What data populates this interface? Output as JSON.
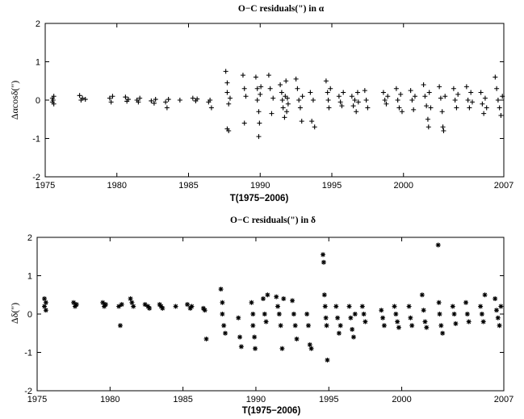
{
  "chart_data": [
    {
      "type": "scatter",
      "title": "O−C residuals(\") in α",
      "xlabel": "T(1975−2006)",
      "ylabel": "Δαcosδ(\")",
      "xlim": [
        1975,
        2007
      ],
      "ylim": [
        -2,
        2
      ],
      "xticks": [
        1975,
        1980,
        1985,
        1990,
        1995,
        2000,
        2007
      ],
      "yticks": [
        2,
        1,
        0,
        -1,
        -2
      ],
      "marker": "plus",
      "grid": false,
      "series": [
        {
          "points": [
            [
              1975.5,
              0.05
            ],
            [
              1975.5,
              -0.05
            ],
            [
              1975.6,
              0.1
            ],
            [
              1975.6,
              -0.1
            ],
            [
              1975.55,
              0.0
            ],
            [
              1977.4,
              0.12
            ],
            [
              1977.5,
              0.0
            ],
            [
              1977.6,
              0.05
            ],
            [
              1977.8,
              0.02
            ],
            [
              1979.5,
              0.05
            ],
            [
              1979.6,
              -0.05
            ],
            [
              1979.7,
              0.1
            ],
            [
              1980.6,
              0.08
            ],
            [
              1980.7,
              -0.03
            ],
            [
              1980.8,
              0.02
            ],
            [
              1981.4,
              0.0
            ],
            [
              1981.5,
              -0.05
            ],
            [
              1981.6,
              0.05
            ],
            [
              1982.4,
              -0.02
            ],
            [
              1982.6,
              -0.08
            ],
            [
              1982.7,
              0.02
            ],
            [
              1983.4,
              -0.05
            ],
            [
              1983.5,
              -0.2
            ],
            [
              1983.6,
              0.02
            ],
            [
              1984.4,
              0.0
            ],
            [
              1985.3,
              0.05
            ],
            [
              1985.5,
              -0.02
            ],
            [
              1985.6,
              0.03
            ],
            [
              1986.4,
              -0.05
            ],
            [
              1986.5,
              0.0
            ],
            [
              1986.6,
              -0.2
            ],
            [
              1987.6,
              0.75
            ],
            [
              1987.7,
              0.45
            ],
            [
              1987.7,
              0.2
            ],
            [
              1987.8,
              -0.1
            ],
            [
              1987.7,
              -0.75
            ],
            [
              1987.8,
              -0.8
            ],
            [
              1987.9,
              0.05
            ],
            [
              1988.8,
              0.65
            ],
            [
              1988.9,
              0.3
            ],
            [
              1988.9,
              -0.6
            ],
            [
              1989.0,
              0.1
            ],
            [
              1989.7,
              0.6
            ],
            [
              1989.8,
              0.3
            ],
            [
              1989.8,
              0.0
            ],
            [
              1989.9,
              -0.3
            ],
            [
              1989.9,
              -0.95
            ],
            [
              1989.95,
              -0.6
            ],
            [
              1990.0,
              0.15
            ],
            [
              1990.05,
              0.35
            ],
            [
              1990.6,
              0.65
            ],
            [
              1990.7,
              0.3
            ],
            [
              1990.8,
              -0.35
            ],
            [
              1990.9,
              0.05
            ],
            [
              1991.4,
              0.4
            ],
            [
              1991.5,
              0.2
            ],
            [
              1991.55,
              0.0
            ],
            [
              1991.6,
              -0.2
            ],
            [
              1991.7,
              -0.45
            ],
            [
              1991.75,
              0.1
            ],
            [
              1991.8,
              0.5
            ],
            [
              1991.85,
              -0.3
            ],
            [
              1991.9,
              0.05
            ],
            [
              1991.95,
              -0.1
            ],
            [
              1992.5,
              0.55
            ],
            [
              1992.6,
              0.3
            ],
            [
              1992.7,
              0.0
            ],
            [
              1992.8,
              -0.2
            ],
            [
              1992.9,
              -0.55
            ],
            [
              1992.95,
              0.1
            ],
            [
              1993.5,
              0.2
            ],
            [
              1993.6,
              -0.55
            ],
            [
              1993.7,
              0.0
            ],
            [
              1993.8,
              -0.7
            ],
            [
              1994.6,
              0.5
            ],
            [
              1994.7,
              0.2
            ],
            [
              1994.75,
              0.0
            ],
            [
              1994.8,
              -0.2
            ],
            [
              1994.9,
              0.3
            ],
            [
              1995.5,
              0.1
            ],
            [
              1995.6,
              -0.05
            ],
            [
              1995.7,
              -0.15
            ],
            [
              1995.8,
              0.2
            ],
            [
              1996.4,
              0.1
            ],
            [
              1996.5,
              -0.15
            ],
            [
              1996.6,
              0.0
            ],
            [
              1996.7,
              -0.3
            ],
            [
              1996.8,
              0.2
            ],
            [
              1996.85,
              -0.05
            ],
            [
              1997.3,
              0.25
            ],
            [
              1997.4,
              0.0
            ],
            [
              1997.5,
              -0.2
            ],
            [
              1998.6,
              0.2
            ],
            [
              1998.7,
              0.0
            ],
            [
              1998.8,
              -0.1
            ],
            [
              1998.9,
              0.1
            ],
            [
              1999.5,
              0.3
            ],
            [
              1999.6,
              0.0
            ],
            [
              1999.7,
              -0.2
            ],
            [
              1999.8,
              0.15
            ],
            [
              1999.9,
              -0.3
            ],
            [
              2000.5,
              0.25
            ],
            [
              2000.6,
              0.0
            ],
            [
              2000.7,
              -0.25
            ],
            [
              2000.8,
              0.1
            ],
            [
              2001.4,
              0.4
            ],
            [
              2001.5,
              0.1
            ],
            [
              2001.6,
              -0.15
            ],
            [
              2001.7,
              -0.5
            ],
            [
              2001.75,
              -0.7
            ],
            [
              2001.8,
              0.2
            ],
            [
              2001.9,
              -0.2
            ],
            [
              2002.5,
              0.35
            ],
            [
              2002.6,
              0.05
            ],
            [
              2002.7,
              -0.3
            ],
            [
              2002.75,
              -0.7
            ],
            [
              2002.8,
              -0.8
            ],
            [
              2002.9,
              0.1
            ],
            [
              2003.5,
              0.3
            ],
            [
              2003.6,
              0.0
            ],
            [
              2003.7,
              -0.2
            ],
            [
              2003.8,
              0.15
            ],
            [
              2004.4,
              0.35
            ],
            [
              2004.5,
              0.0
            ],
            [
              2004.6,
              -0.2
            ],
            [
              2004.7,
              0.2
            ],
            [
              2004.8,
              -0.05
            ],
            [
              2005.4,
              0.2
            ],
            [
              2005.5,
              -0.1
            ],
            [
              2005.6,
              -0.35
            ],
            [
              2005.7,
              0.05
            ],
            [
              2005.8,
              -0.2
            ],
            [
              2006.4,
              0.6
            ],
            [
              2006.5,
              0.3
            ],
            [
              2006.6,
              0.0
            ],
            [
              2006.7,
              -0.2
            ],
            [
              2006.8,
              -0.4
            ],
            [
              2006.9,
              0.1
            ]
          ]
        }
      ]
    },
    {
      "type": "scatter",
      "title": "O−C residuals(\") in δ",
      "xlabel": "T(1975−2006)",
      "ylabel": "Δδ(\")",
      "xlim": [
        1975,
        2007
      ],
      "ylim": [
        -2,
        2
      ],
      "xticks": [
        1975,
        1980,
        1985,
        1990,
        1995,
        2000,
        2007
      ],
      "yticks": [
        2,
        1,
        0,
        -1,
        -2
      ],
      "marker": "asterisk",
      "grid": false,
      "series": [
        {
          "points": [
            [
              1975.5,
              0.4
            ],
            [
              1975.5,
              0.2
            ],
            [
              1975.6,
              0.1
            ],
            [
              1975.6,
              0.3
            ],
            [
              1977.5,
              0.3
            ],
            [
              1977.6,
              0.2
            ],
            [
              1977.7,
              0.25
            ],
            [
              1979.5,
              0.3
            ],
            [
              1979.6,
              0.2
            ],
            [
              1979.7,
              0.25
            ],
            [
              1980.6,
              0.2
            ],
            [
              1980.7,
              -0.3
            ],
            [
              1980.8,
              0.25
            ],
            [
              1981.4,
              0.4
            ],
            [
              1981.5,
              0.3
            ],
            [
              1981.6,
              0.2
            ],
            [
              1982.4,
              0.25
            ],
            [
              1982.6,
              0.2
            ],
            [
              1982.7,
              0.15
            ],
            [
              1983.4,
              0.25
            ],
            [
              1983.5,
              0.2
            ],
            [
              1983.6,
              0.15
            ],
            [
              1984.5,
              0.2
            ],
            [
              1985.3,
              0.25
            ],
            [
              1985.5,
              0.15
            ],
            [
              1985.6,
              0.2
            ],
            [
              1986.4,
              0.15
            ],
            [
              1986.5,
              0.1
            ],
            [
              1986.6,
              -0.65
            ],
            [
              1987.6,
              0.65
            ],
            [
              1987.7,
              0.3
            ],
            [
              1987.7,
              0.0
            ],
            [
              1987.8,
              -0.3
            ],
            [
              1987.9,
              -0.5
            ],
            [
              1988.8,
              -0.1
            ],
            [
              1988.9,
              -0.6
            ],
            [
              1989.0,
              -0.85
            ],
            [
              1989.7,
              0.3
            ],
            [
              1989.8,
              0.0
            ],
            [
              1989.8,
              -0.3
            ],
            [
              1989.9,
              -0.6
            ],
            [
              1989.95,
              -0.9
            ],
            [
              1990.5,
              0.4
            ],
            [
              1990.6,
              0.0
            ],
            [
              1990.7,
              -0.2
            ],
            [
              1990.8,
              0.5
            ],
            [
              1991.4,
              0.45
            ],
            [
              1991.5,
              0.2
            ],
            [
              1991.6,
              0.0
            ],
            [
              1991.7,
              -0.3
            ],
            [
              1991.8,
              -0.9
            ],
            [
              1991.9,
              0.4
            ],
            [
              1992.5,
              0.35
            ],
            [
              1992.6,
              0.0
            ],
            [
              1992.7,
              -0.3
            ],
            [
              1992.8,
              -0.65
            ],
            [
              1993.5,
              0.0
            ],
            [
              1993.6,
              -0.3
            ],
            [
              1993.7,
              -0.8
            ],
            [
              1993.8,
              -0.9
            ],
            [
              1994.6,
              1.55
            ],
            [
              1994.65,
              1.35
            ],
            [
              1994.7,
              0.5
            ],
            [
              1994.75,
              0.2
            ],
            [
              1994.8,
              -0.1
            ],
            [
              1994.85,
              -0.3
            ],
            [
              1994.9,
              -1.2
            ],
            [
              1995.5,
              0.2
            ],
            [
              1995.6,
              -0.1
            ],
            [
              1995.7,
              -0.5
            ],
            [
              1995.8,
              -0.3
            ],
            [
              1996.4,
              0.2
            ],
            [
              1996.5,
              -0.1
            ],
            [
              1996.6,
              -0.4
            ],
            [
              1996.7,
              -0.6
            ],
            [
              1996.8,
              0.0
            ],
            [
              1997.3,
              0.2
            ],
            [
              1997.4,
              0.0
            ],
            [
              1997.5,
              -0.2
            ],
            [
              1998.6,
              0.1
            ],
            [
              1998.7,
              -0.1
            ],
            [
              1998.8,
              -0.3
            ],
            [
              1999.5,
              0.2
            ],
            [
              1999.6,
              0.0
            ],
            [
              1999.7,
              -0.2
            ],
            [
              1999.8,
              -0.35
            ],
            [
              2000.5,
              0.2
            ],
            [
              2000.6,
              -0.1
            ],
            [
              2000.7,
              -0.3
            ],
            [
              2001.4,
              0.5
            ],
            [
              2001.5,
              0.1
            ],
            [
              2001.6,
              -0.2
            ],
            [
              2001.7,
              -0.35
            ],
            [
              2002.5,
              1.8
            ],
            [
              2002.55,
              0.3
            ],
            [
              2002.6,
              0.0
            ],
            [
              2002.7,
              -0.3
            ],
            [
              2002.8,
              -0.5
            ],
            [
              2003.5,
              0.2
            ],
            [
              2003.6,
              0.0
            ],
            [
              2003.7,
              -0.25
            ],
            [
              2004.4,
              0.3
            ],
            [
              2004.5,
              0.0
            ],
            [
              2004.6,
              -0.2
            ],
            [
              2005.4,
              0.2
            ],
            [
              2005.5,
              0.0
            ],
            [
              2005.6,
              -0.2
            ],
            [
              2005.7,
              0.5
            ],
            [
              2006.4,
              0.4
            ],
            [
              2006.5,
              0.1
            ],
            [
              2006.6,
              -0.1
            ],
            [
              2006.7,
              -0.3
            ],
            [
              2006.8,
              0.2
            ]
          ]
        }
      ]
    }
  ]
}
